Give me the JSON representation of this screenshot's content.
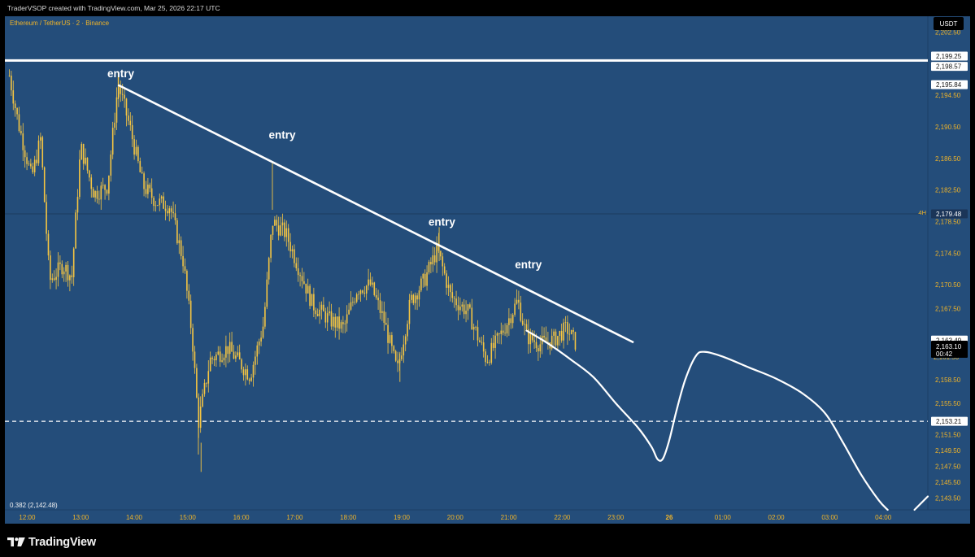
{
  "header": {
    "attribution": "TraderVSOP created with TradingView.com, Mar 25, 2026 22:17 UTC",
    "symbol": "Ethereum / TetherUS · 2 · Binance",
    "currency_badge": "USDT",
    "tf_label": "4H",
    "fib_label": "0.382 (2,142.48)",
    "price_now": "2,163.10",
    "countdown": "00:42",
    "hidden_label": "2,161.50"
  },
  "brand": {
    "name": "TradingView"
  },
  "colors": {
    "background": "#244d7a",
    "candle": "#f5c542",
    "line": "#ffffff",
    "axis_text": "#f0b429",
    "frame": "#000000"
  },
  "annotations": [
    {
      "text": "entry",
      "time": "13:45",
      "price": 2196.8
    },
    {
      "text": "entry",
      "time": "16:46",
      "price": 2189.0
    },
    {
      "text": "entry",
      "time": "19:45",
      "price": 2178.0
    },
    {
      "text": "entry",
      "time": "21:22",
      "price": 2172.6
    }
  ],
  "chart_data": {
    "type": "candlestick",
    "title": "Ethereum / TetherUS · 2 · Binance",
    "xlabel": "",
    "ylabel": "USDT",
    "y_range": [
      2142.0,
      2204.5
    ],
    "x_range": [
      "11:35",
      "04:50 (next day)"
    ],
    "grid": false,
    "y_ticks": [
      "2,202.50",
      "2,194.50",
      "2,190.50",
      "2,186.50",
      "2,182.50",
      "2,178.50",
      "2,174.50",
      "2,170.50",
      "2,167.50",
      "2,158.50",
      "2,155.50",
      "2,151.50",
      "2,149.50",
      "2,147.50",
      "2,145.50",
      "2,143.50"
    ],
    "x_ticks": [
      "12:00",
      "13:00",
      "14:00",
      "15:00",
      "16:00",
      "17:00",
      "18:00",
      "19:00",
      "20:00",
      "21:00",
      "22:00",
      "23:00",
      "26",
      "01:00",
      "02:00",
      "03:00",
      "04:00"
    ],
    "price_tags": [
      {
        "label": "2,199.25",
        "price": 2199.25,
        "style": "white"
      },
      {
        "label": "2,198.57",
        "price": 2198.57,
        "style": "white"
      },
      {
        "label": "2,195.84",
        "price": 2195.84,
        "style": "white"
      },
      {
        "label": "2,179.48",
        "price": 2179.48,
        "style": "navy"
      },
      {
        "label": "2,163.49",
        "price": 2163.49,
        "style": "white"
      },
      {
        "label": "2,153.21",
        "price": 2153.21,
        "style": "white"
      }
    ],
    "horizontal_levels": [
      {
        "price": 2198.9,
        "style": "solid-white",
        "thickness": "thick"
      },
      {
        "price": 2179.48,
        "style": "thin-dark"
      },
      {
        "price": 2153.21,
        "style": "dashed-white"
      }
    ],
    "trendline": {
      "from": {
        "time": "13:42",
        "price": 2195.8
      },
      "to": {
        "time": "23:20",
        "price": 2163.2
      }
    },
    "projection_path": [
      [
        "21:20",
        2164.7
      ],
      [
        "21:45",
        2163.0
      ],
      [
        "22:10",
        2161.0
      ],
      [
        "22:35",
        2158.8
      ],
      [
        "23:00",
        2155.5
      ],
      [
        "23:25",
        2152.4
      ],
      [
        "23:40",
        2150.0
      ],
      [
        "23:47",
        2148.4
      ],
      [
        "23:53",
        2148.5
      ],
      [
        "00:00",
        2150.8
      ],
      [
        "00:08",
        2154.5
      ],
      [
        "00:18",
        2158.5
      ],
      [
        "00:30",
        2161.5
      ],
      [
        "00:40",
        2162.0
      ],
      [
        "01:00",
        2161.4
      ],
      [
        "01:30",
        2160.0
      ],
      [
        "02:00",
        2158.6
      ],
      [
        "02:30",
        2156.7
      ],
      [
        "02:55",
        2154.2
      ],
      [
        "03:15",
        2150.5
      ],
      [
        "03:35",
        2146.5
      ],
      [
        "03:55",
        2143.2
      ],
      [
        "04:05",
        2142.0
      ]
    ],
    "projection_tail": [
      [
        "04:35",
        2142.0
      ],
      [
        "04:50",
        2143.7
      ]
    ],
    "price_series_approx": [
      [
        "11:40",
        2197.0
      ],
      [
        "11:50",
        2191.0
      ],
      [
        "12:05",
        2184.0
      ],
      [
        "12:15",
        2189.0
      ],
      [
        "12:25",
        2171.0
      ],
      [
        "12:40",
        2173.0
      ],
      [
        "12:50",
        2171.5
      ],
      [
        "13:00",
        2188.0
      ],
      [
        "13:15",
        2182.0
      ],
      [
        "13:30",
        2183.0
      ],
      [
        "13:42",
        2196.0
      ],
      [
        "13:55",
        2190.5
      ],
      [
        "14:10",
        2183.0
      ],
      [
        "14:25",
        2181.0
      ],
      [
        "14:40",
        2180.5
      ],
      [
        "14:55",
        2173.5
      ],
      [
        "15:05",
        2164.0
      ],
      [
        "15:12",
        2153.0
      ],
      [
        "15:25",
        2161.0
      ],
      [
        "15:45",
        2162.5
      ],
      [
        "16:10",
        2159.0
      ],
      [
        "16:25",
        2165.5
      ],
      [
        "16:35",
        2178.5
      ],
      [
        "16:50",
        2177.0
      ],
      [
        "17:05",
        2172.5
      ],
      [
        "17:20",
        2168.0
      ],
      [
        "17:40",
        2166.0
      ],
      [
        "17:55",
        2165.0
      ],
      [
        "18:10",
        2170.0
      ],
      [
        "18:25",
        2170.5
      ],
      [
        "18:40",
        2166.0
      ],
      [
        "18:55",
        2159.5
      ],
      [
        "19:10",
        2168.5
      ],
      [
        "19:25",
        2171.0
      ],
      [
        "19:40",
        2175.0
      ],
      [
        "19:55",
        2169.0
      ],
      [
        "20:15",
        2167.0
      ],
      [
        "20:35",
        2161.0
      ],
      [
        "20:55",
        2165.0
      ],
      [
        "21:10",
        2168.5
      ],
      [
        "21:20",
        2164.0
      ],
      [
        "21:35",
        2163.0
      ],
      [
        "21:50",
        2163.5
      ],
      [
        "22:05",
        2165.0
      ],
      [
        "22:15",
        2163.1
      ]
    ]
  }
}
